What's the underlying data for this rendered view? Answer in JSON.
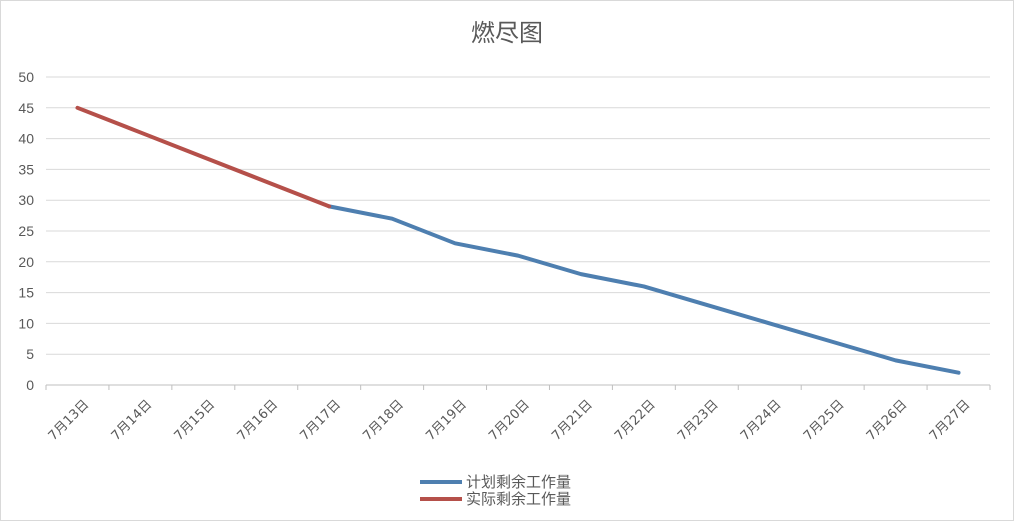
{
  "chart_data": {
    "type": "line",
    "title": "燃尽图",
    "categories": [
      "7月13日",
      "7月14日",
      "7月15日",
      "7月16日",
      "7月17日",
      "7月18日",
      "7月19日",
      "7月20日",
      "7月21日",
      "7月22日",
      "7月23日",
      "7月24日",
      "7月25日",
      "7月26日",
      "7月27日"
    ],
    "ylim": [
      0,
      50
    ],
    "yticks": [
      "0",
      "5",
      "10",
      "15",
      "20",
      "25",
      "30",
      "35",
      "40",
      "45",
      "50"
    ],
    "grid": true,
    "legend_position": "bottom",
    "series": [
      {
        "name": "计划剩余工作量",
        "color": "#4e7fb0",
        "values": [
          null,
          null,
          null,
          null,
          29,
          27,
          23,
          21,
          18,
          16,
          13,
          10,
          7,
          4,
          2
        ]
      },
      {
        "name": "实际剩余工作量",
        "color": "#b5504a",
        "values": [
          45,
          41,
          37,
          33,
          29,
          null,
          null,
          null,
          null,
          null,
          null,
          null,
          null,
          null,
          null
        ]
      }
    ]
  }
}
